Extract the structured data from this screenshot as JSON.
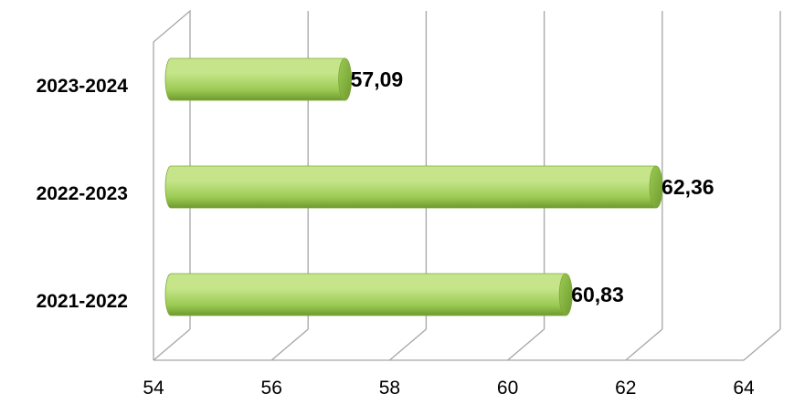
{
  "chart_data": {
    "type": "bar",
    "orientation": "horizontal",
    "style": "3d-cylinder",
    "categories": [
      "2021-2022",
      "2022-2023",
      "2023-2024"
    ],
    "values": [
      60.83,
      62.36,
      57.09
    ],
    "data_labels": [
      "60,83",
      "62,36",
      "57,09"
    ],
    "x_ticks": [
      "54",
      "56",
      "58",
      "60",
      "62",
      "64"
    ],
    "xlim": [
      54,
      64
    ],
    "title": "",
    "xlabel": "",
    "ylabel": "",
    "grid": true,
    "legend": "none",
    "colors": {
      "bar_light": "#c6e58a",
      "bar_mid": "#9bcb53",
      "bar_dark": "#6f9a2e",
      "bar_end": "#7da63a",
      "gridline": "#a6a6a6"
    }
  }
}
